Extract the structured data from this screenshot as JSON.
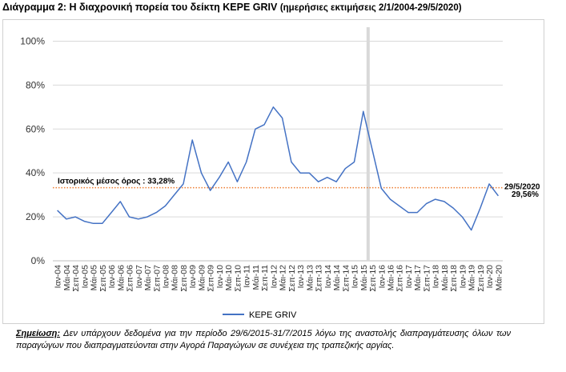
{
  "figure": {
    "title": "Διάγραμμα 2: Η διαχρονική πορεία του δείκτη ΚΕΡΕ GRIV",
    "subtitle": "(ημερήσιες εκτιμήσεις 2/1/2004-29/5/2020)"
  },
  "note": {
    "label": "Σημείωση:",
    "text": "Δεν υπάρχουν δεδομένα για την περίοδο 29/6/2015-31/7/2015 λόγω της αναστολής διαπραγμάτευσης όλων των παραγώγων που διαπραγματεύονται στην Αγορά Παραγώγων σε συνέχεια της τραπεζικής αργίας."
  },
  "chart_data": {
    "type": "line",
    "title": "",
    "xlabel": "",
    "ylabel": "",
    "ylim": [
      0,
      110
    ],
    "y_ticks": [
      "0%",
      "20%",
      "40%",
      "60%",
      "80%",
      "100%"
    ],
    "y_tick_values": [
      0,
      20,
      40,
      60,
      80,
      100
    ],
    "grid": "horizontal",
    "legend_position": "bottom",
    "x_tick_labels": [
      "Ιαν-04",
      "Μάι-04",
      "Σεπ-04",
      "Ιαν-05",
      "Μάι-05",
      "Σεπ-05",
      "Ιαν-06",
      "Μάι-06",
      "Σεπ-06",
      "Ιαν-07",
      "Μάι-07",
      "Σεπ-07",
      "Ιαν-08",
      "Μάι-08",
      "Σεπ-08",
      "Ιαν-09",
      "Μάι-09",
      "Σεπ-09",
      "Ιαν-10",
      "Μάι-10",
      "Σεπ-10",
      "Ιαν-11",
      "Μάι-11",
      "Σεπ-11",
      "Ιαν-12",
      "Μάι-12",
      "Σεπ-12",
      "Ιαν-13",
      "Μάι-13",
      "Σεπ-13",
      "Ιαν-14",
      "Μάι-14",
      "Σεπ-14",
      "Ιαν-15",
      "Μάι-15",
      "Σεπ-15",
      "Ιαν-16",
      "Μάι-16",
      "Σεπ-16",
      "Ιαν-17",
      "Μάι-17",
      "Σεπ-17",
      "Ιαν-18",
      "Μάι-18",
      "Σεπ-18",
      "Ιαν-19",
      "Μάι-19",
      "Σεπ-19",
      "Ιαν-20",
      "Μάι-20"
    ],
    "series": [
      {
        "name": "ΚΕΡΕ GRIV",
        "color": "#4472c4",
        "x": [
          "Ιαν-04",
          "Μάι-04",
          "Σεπ-04",
          "Ιαν-05",
          "Μάι-05",
          "Σεπ-05",
          "Ιαν-06",
          "Μάι-06",
          "Σεπ-06",
          "Ιαν-07",
          "Μάι-07",
          "Σεπ-07",
          "Ιαν-08",
          "Μάι-08",
          "Σεπ-08",
          "Ιαν-09",
          "Μάι-09",
          "Σεπ-09",
          "Ιαν-10",
          "Μάι-10",
          "Σεπ-10",
          "Ιαν-11",
          "Μάι-11",
          "Σεπ-11",
          "Ιαν-12",
          "Μάι-12",
          "Σεπ-12",
          "Ιαν-13",
          "Μάι-13",
          "Σεπ-13",
          "Ιαν-14",
          "Μάι-14",
          "Σεπ-14",
          "Ιαν-15",
          "Μάι-15",
          "Σεπ-15",
          "Ιαν-16",
          "Μάι-16",
          "Σεπ-16",
          "Ιαν-17",
          "Μάι-17",
          "Σεπ-17",
          "Ιαν-18",
          "Μάι-18",
          "Σεπ-18",
          "Ιαν-19",
          "Μάι-19",
          "Σεπ-19",
          "Ιαν-20",
          "Μάι-20"
        ],
        "values": [
          23,
          19,
          20,
          18,
          17,
          17,
          22,
          27,
          20,
          19,
          20,
          22,
          25,
          30,
          35,
          55,
          40,
          32,
          38,
          45,
          36,
          45,
          60,
          62,
          70,
          65,
          45,
          40,
          40,
          36,
          38,
          36,
          42,
          45,
          68,
          null,
          33,
          28,
          25,
          22,
          22,
          26,
          28,
          27,
          24,
          20,
          14,
          24,
          35,
          29.56
        ]
      }
    ],
    "reference_line": {
      "label": "Ιστορικός μέσος όρος : 33,28%",
      "value": 33.28,
      "color": "#ed7d31"
    },
    "gap_period": {
      "from": "Ιουν-15",
      "to": "Ιουλ-15"
    },
    "end_annotation": {
      "date": "29/5/2020",
      "value_label": "29,56%"
    }
  }
}
